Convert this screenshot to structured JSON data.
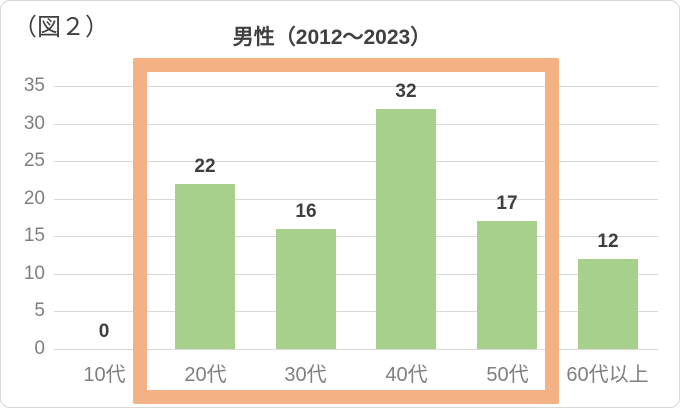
{
  "figure_label": "（図２）",
  "chart_data": {
    "type": "bar",
    "title": "男性（2012～2023）",
    "categories": [
      "10代",
      "20代",
      "30代",
      "40代",
      "50代",
      "60代以上"
    ],
    "values": [
      0,
      22,
      16,
      32,
      17,
      12
    ],
    "ylim": [
      0,
      35
    ],
    "yticks": [
      0,
      5,
      10,
      15,
      20,
      25,
      30,
      35
    ],
    "grid": true,
    "legend": "none",
    "bar_color": "#a7d08c",
    "gridline_color": "#d9d9d9",
    "axis_label_color": "#7f7f7f",
    "data_label_color": "#3f3f3f",
    "title_color": "#404040",
    "highlight": {
      "description": "orange rectangle outlining categories 20代 through 50代",
      "categories": [
        "20代",
        "30代",
        "40代",
        "50代"
      ],
      "start_index": 1,
      "end_index": 4,
      "color": "#f4b183"
    }
  }
}
